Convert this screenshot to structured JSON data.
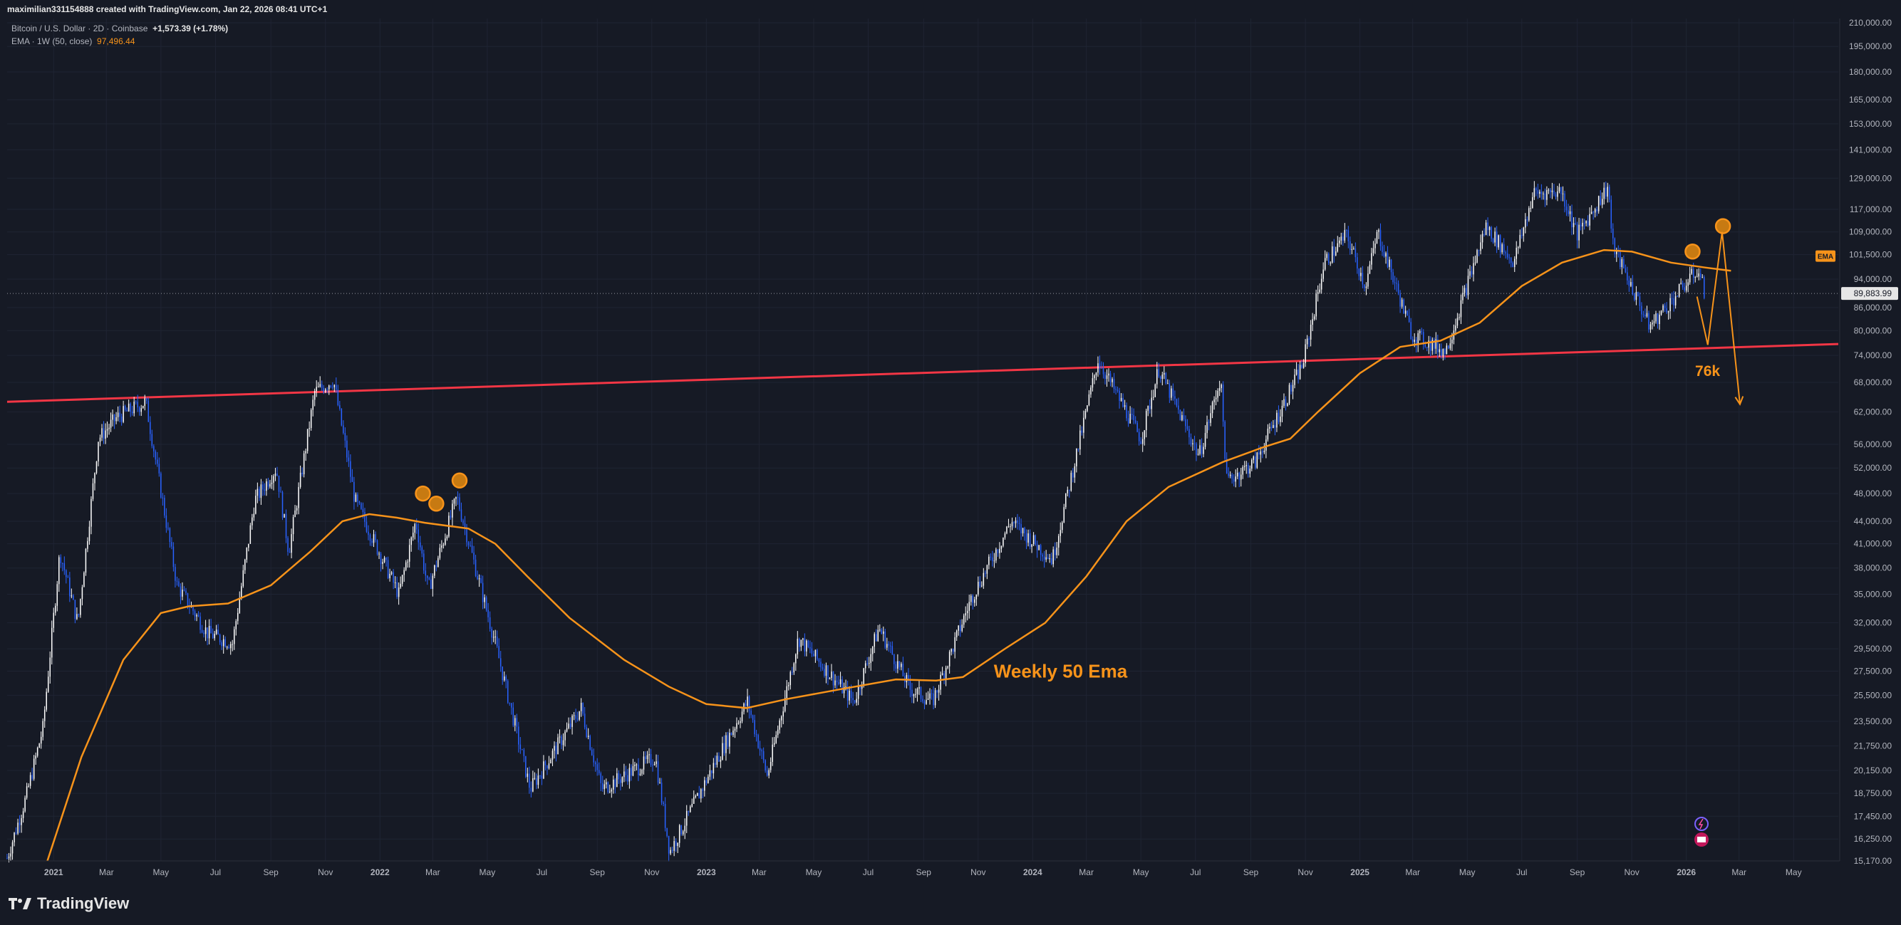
{
  "header": {
    "credit": "maximilian331154888 created with TradingView.com, Jan 22, 2026 08:41 UTC+1",
    "symbol": "Bitcoin / U.S. Dollar · 2D · Coinbase",
    "change": "+1,573.39 (+1.78%)",
    "indicator_label": "EMA · 1W (50, close)",
    "indicator_value": "97,496.44"
  },
  "footer": {
    "logo_text": "TradingView"
  },
  "colors": {
    "background": "#161a25",
    "candle_up": "#ffffff",
    "candle_down": "#2962ff",
    "ema": "#f7931a",
    "trendline": "#f23645",
    "annotation": "#f7931a",
    "grid": "#1f2433"
  },
  "chart_data": {
    "type": "candlestick",
    "title": "",
    "y_scale": "log",
    "ylim": [
      15170,
      210000
    ],
    "xlim": [
      "2020-11-10",
      "2026-06-20"
    ],
    "y_ticks": [
      "210,000.00",
      "195,000.00",
      "180,000.00",
      "165,000.00",
      "153,000.00",
      "141,000.00",
      "129,000.00",
      "117,000.00",
      "109,000.00",
      "101,500.00",
      "94,000.00",
      "86,000.00",
      "80,000.00",
      "74,000.00",
      "68,000.00",
      "62,000.00",
      "56,000.00",
      "52,000.00",
      "48,000.00",
      "44,000.00",
      "41,000.00",
      "38,000.00",
      "35,000.00",
      "32,000.00",
      "29,500.00",
      "27,500.00",
      "25,500.00",
      "23,500.00",
      "21,750.00",
      "20,150.00",
      "18,750.00",
      "17,450.00",
      "16,250.00",
      "15,170.00"
    ],
    "x_ticks": [
      {
        "label": "2021",
        "date": "2021-01-01",
        "bold": true
      },
      {
        "label": "Mar",
        "date": "2021-03-01"
      },
      {
        "label": "May",
        "date": "2021-05-01"
      },
      {
        "label": "Jul",
        "date": "2021-07-01"
      },
      {
        "label": "Sep",
        "date": "2021-09-01"
      },
      {
        "label": "Nov",
        "date": "2021-11-01"
      },
      {
        "label": "2022",
        "date": "2022-01-01",
        "bold": true
      },
      {
        "label": "Mar",
        "date": "2022-03-01"
      },
      {
        "label": "May",
        "date": "2022-05-01"
      },
      {
        "label": "Jul",
        "date": "2022-07-01"
      },
      {
        "label": "Sep",
        "date": "2022-09-01"
      },
      {
        "label": "Nov",
        "date": "2022-11-01"
      },
      {
        "label": "2023",
        "date": "2023-01-01",
        "bold": true
      },
      {
        "label": "Mar",
        "date": "2023-03-01"
      },
      {
        "label": "May",
        "date": "2023-05-01"
      },
      {
        "label": "Jul",
        "date": "2023-07-01"
      },
      {
        "label": "Sep",
        "date": "2023-09-01"
      },
      {
        "label": "Nov",
        "date": "2023-11-01"
      },
      {
        "label": "2024",
        "date": "2024-01-01",
        "bold": true
      },
      {
        "label": "Mar",
        "date": "2024-03-01"
      },
      {
        "label": "May",
        "date": "2024-05-01"
      },
      {
        "label": "Jul",
        "date": "2024-07-01"
      },
      {
        "label": "Sep",
        "date": "2024-09-01"
      },
      {
        "label": "Nov",
        "date": "2024-11-01"
      },
      {
        "label": "2025",
        "date": "2025-01-01",
        "bold": true
      },
      {
        "label": "Mar",
        "date": "2025-03-01"
      },
      {
        "label": "May",
        "date": "2025-05-01"
      },
      {
        "label": "Jul",
        "date": "2025-07-01"
      },
      {
        "label": "Sep",
        "date": "2025-09-01"
      },
      {
        "label": "Nov",
        "date": "2025-11-01"
      },
      {
        "label": "2026",
        "date": "2026-01-01",
        "bold": true
      },
      {
        "label": "Mar",
        "date": "2026-03-01"
      },
      {
        "label": "May",
        "date": "2026-05-01"
      }
    ],
    "price_path": [
      [
        "2020-11-10",
        15300
      ],
      [
        "2020-12-01",
        18500
      ],
      [
        "2020-12-20",
        23000
      ],
      [
        "2021-01-08",
        40000
      ],
      [
        "2021-01-28",
        32000
      ],
      [
        "2021-02-20",
        57000
      ],
      [
        "2021-03-13",
        61000
      ],
      [
        "2021-04-14",
        64000
      ],
      [
        "2021-05-19",
        36000
      ],
      [
        "2021-06-22",
        31000
      ],
      [
        "2021-07-20",
        30000
      ],
      [
        "2021-08-14",
        47000
      ],
      [
        "2021-09-07",
        52000
      ],
      [
        "2021-09-21",
        40000
      ],
      [
        "2021-10-20",
        66000
      ],
      [
        "2021-11-10",
        68500
      ],
      [
        "2021-12-04",
        47000
      ],
      [
        "2022-01-22",
        35000
      ],
      [
        "2022-02-10",
        44000
      ],
      [
        "2022-02-24",
        35500
      ],
      [
        "2022-03-28",
        47500
      ],
      [
        "2022-05-10",
        30000
      ],
      [
        "2022-06-18",
        19000
      ],
      [
        "2022-08-14",
        24500
      ],
      [
        "2022-09-06",
        19000
      ],
      [
        "2022-11-05",
        21000
      ],
      [
        "2022-11-21",
        15600
      ],
      [
        "2023-01-14",
        21000
      ],
      [
        "2023-02-16",
        25000
      ],
      [
        "2023-03-10",
        19800
      ],
      [
        "2023-04-14",
        30500
      ],
      [
        "2023-06-15",
        25000
      ],
      [
        "2023-07-13",
        31500
      ],
      [
        "2023-08-17",
        26000
      ],
      [
        "2023-09-11",
        25000
      ],
      [
        "2023-10-24",
        34500
      ],
      [
        "2023-12-08",
        44000
      ],
      [
        "2024-01-23",
        39000
      ],
      [
        "2024-03-14",
        73000
      ],
      [
        "2024-05-01",
        57000
      ],
      [
        "2024-05-21",
        71000
      ],
      [
        "2024-07-05",
        54000
      ],
      [
        "2024-07-29",
        69000
      ],
      [
        "2024-08-05",
        50000
      ],
      [
        "2024-09-06",
        53000
      ],
      [
        "2024-10-29",
        72000
      ],
      [
        "2024-11-22",
        99000
      ],
      [
        "2024-12-17",
        108000
      ],
      [
        "2025-01-07",
        92000
      ],
      [
        "2025-01-21",
        109000
      ],
      [
        "2025-02-28",
        79000
      ],
      [
        "2025-04-07",
        75000
      ],
      [
        "2025-05-22",
        111000
      ],
      [
        "2025-06-22",
        99000
      ],
      [
        "2025-07-14",
        123000
      ],
      [
        "2025-08-14",
        124000
      ],
      [
        "2025-09-01",
        108000
      ],
      [
        "2025-10-06",
        126000
      ],
      [
        "2025-10-10",
        105000
      ],
      [
        "2025-11-21",
        81000
      ],
      [
        "2026-01-14",
        97000
      ],
      [
        "2026-01-22",
        89884
      ]
    ],
    "ema_path": [
      [
        "2020-12-25",
        15170
      ],
      [
        "2021-02-01",
        21000
      ],
      [
        "2021-03-20",
        28500
      ],
      [
        "2021-05-01",
        33000
      ],
      [
        "2021-06-01",
        33700
      ],
      [
        "2021-07-15",
        34000
      ],
      [
        "2021-09-01",
        36000
      ],
      [
        "2021-10-15",
        40000
      ],
      [
        "2021-11-20",
        44000
      ],
      [
        "2021-12-20",
        45000
      ],
      [
        "2022-01-20",
        44500
      ],
      [
        "2022-02-20",
        43800
      ],
      [
        "2022-04-10",
        43000
      ],
      [
        "2022-05-10",
        41000
      ],
      [
        "2022-06-15",
        37000
      ],
      [
        "2022-08-01",
        32500
      ],
      [
        "2022-10-01",
        28500
      ],
      [
        "2022-11-20",
        26200
      ],
      [
        "2023-01-01",
        24800
      ],
      [
        "2023-02-15",
        24500
      ],
      [
        "2023-04-01",
        25200
      ],
      [
        "2023-06-01",
        26000
      ],
      [
        "2023-08-01",
        26800
      ],
      [
        "2023-09-15",
        26700
      ],
      [
        "2023-10-15",
        27000
      ],
      [
        "2023-12-01",
        29500
      ],
      [
        "2024-01-15",
        32000
      ],
      [
        "2024-03-01",
        37000
      ],
      [
        "2024-04-15",
        44000
      ],
      [
        "2024-06-01",
        49000
      ],
      [
        "2024-08-01",
        53000
      ],
      [
        "2024-09-15",
        55500
      ],
      [
        "2024-10-15",
        57000
      ],
      [
        "2024-11-15",
        62000
      ],
      [
        "2025-01-01",
        70000
      ],
      [
        "2025-02-15",
        76000
      ],
      [
        "2025-04-01",
        77500
      ],
      [
        "2025-05-15",
        82000
      ],
      [
        "2025-07-01",
        92000
      ],
      [
        "2025-08-15",
        99000
      ],
      [
        "2025-10-01",
        103000
      ],
      [
        "2025-11-01",
        102500
      ],
      [
        "2025-12-15",
        99000
      ],
      [
        "2026-01-22",
        97496
      ],
      [
        "2026-02-20",
        96500
      ]
    ],
    "trendline": [
      [
        "2020-11-10",
        64000
      ],
      [
        "2026-06-20",
        76700
      ]
    ],
    "last_price": "89,883.99",
    "ema_tag": "EMA",
    "annotations": {
      "ema_label": "Weekly 50 Ema",
      "target_label": "76k",
      "circles": [
        [
          "2022-02-18",
          48000
        ],
        [
          "2022-03-05",
          46500
        ],
        [
          "2022-03-31",
          50000
        ],
        [
          "2026-01-08",
          102500
        ],
        [
          "2026-02-11",
          111000
        ]
      ],
      "projection": [
        [
          "2026-01-13",
          89000
        ],
        [
          "2026-01-25",
          76500
        ],
        [
          "2026-02-10",
          109000
        ],
        [
          "2026-03-02",
          63500
        ]
      ]
    }
  }
}
